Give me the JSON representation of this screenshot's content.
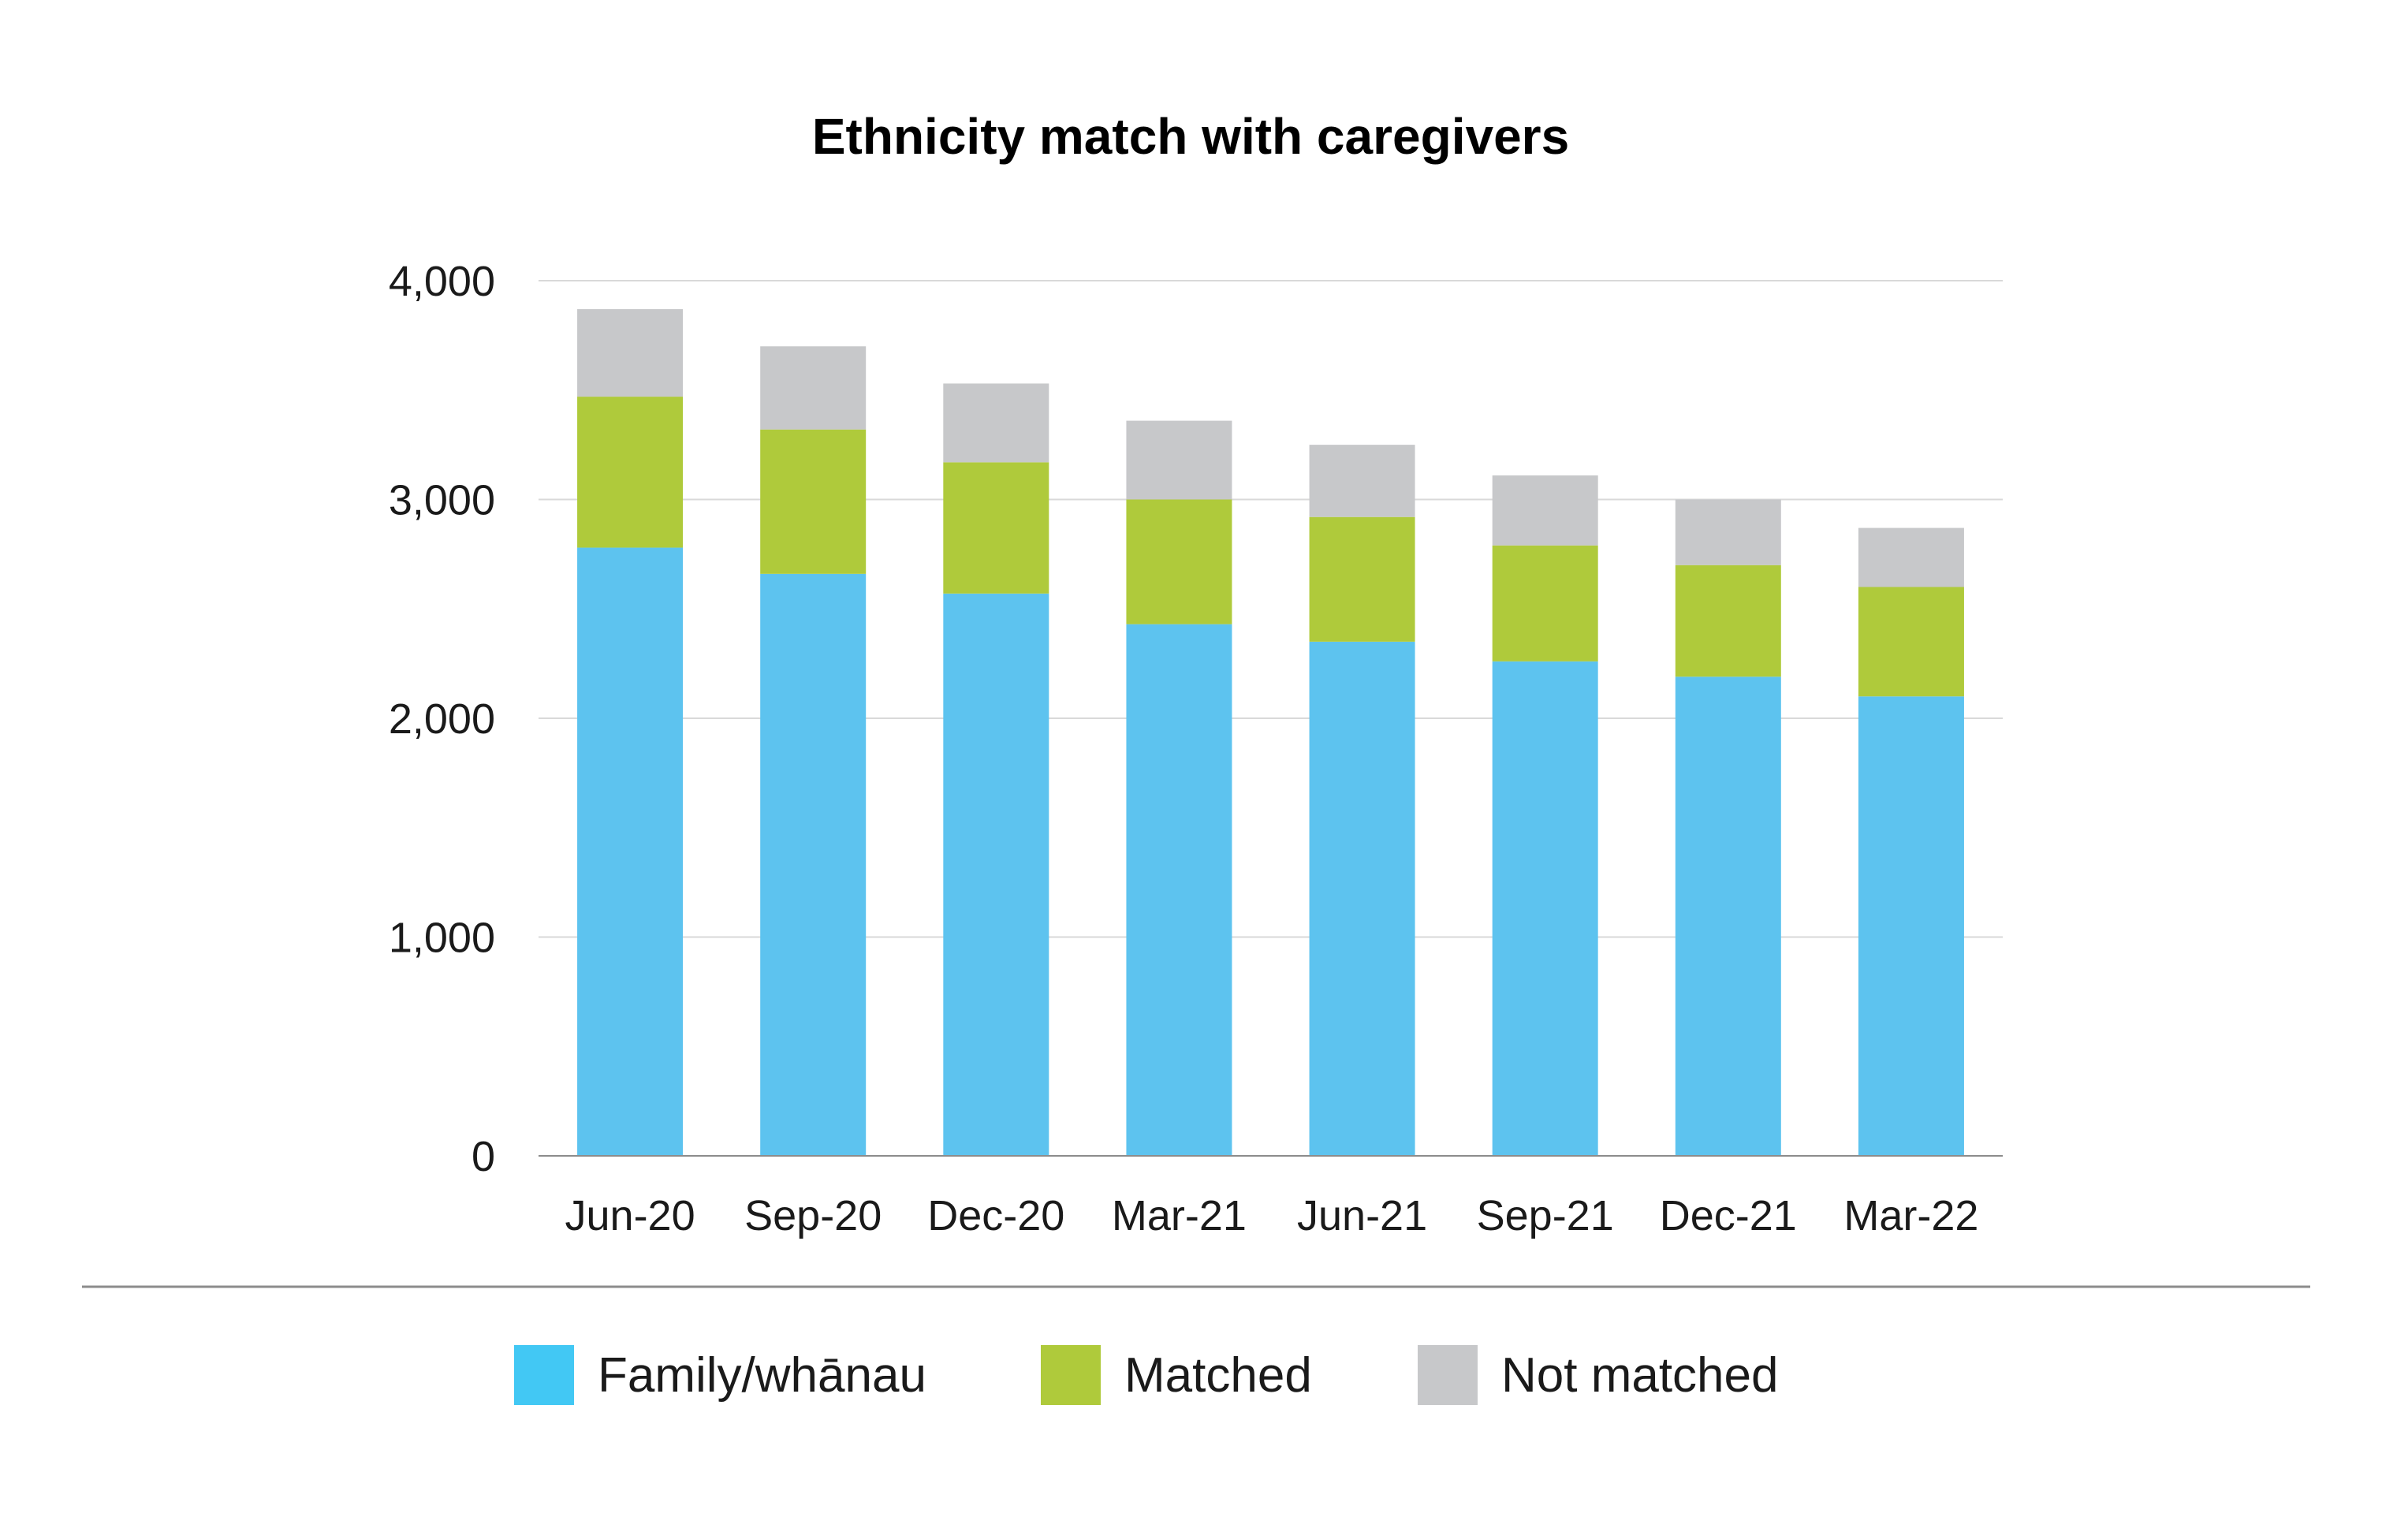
{
  "chart_data": {
    "type": "bar",
    "stacked": true,
    "title": "Ethnicity match with caregivers",
    "xlabel": "",
    "ylabel": "",
    "categories": [
      "Jun-20",
      "Sep-20",
      "Dec-20",
      "Mar-21",
      "Jun-21",
      "Sep-21",
      "Dec-21",
      "Mar-22"
    ],
    "series": [
      {
        "name": "Family/whānau",
        "color": "#5dc3ef",
        "values": [
          2780,
          2660,
          2570,
          2430,
          2350,
          2260,
          2190,
          2100
        ]
      },
      {
        "name": "Matched",
        "color": "#afca3b",
        "values": [
          690,
          660,
          600,
          570,
          570,
          530,
          510,
          500
        ]
      },
      {
        "name": "Not matched",
        "color": "#c7c8ca",
        "values": [
          400,
          380,
          360,
          360,
          330,
          320,
          300,
          270
        ]
      }
    ],
    "ylim": [
      0,
      4000
    ],
    "yticks": [
      0,
      1000,
      2000,
      3000,
      4000
    ],
    "ytick_labels": [
      "0",
      "1,000",
      "2,000",
      "3,000",
      "4,000"
    ],
    "grid": true,
    "legend_position": "bottom"
  },
  "colors": {
    "grid": "#d9d9d9",
    "axis": "#8c8c8c",
    "divider": "#8c8c8c",
    "legend_family_swatch": "#42c8f4"
  }
}
